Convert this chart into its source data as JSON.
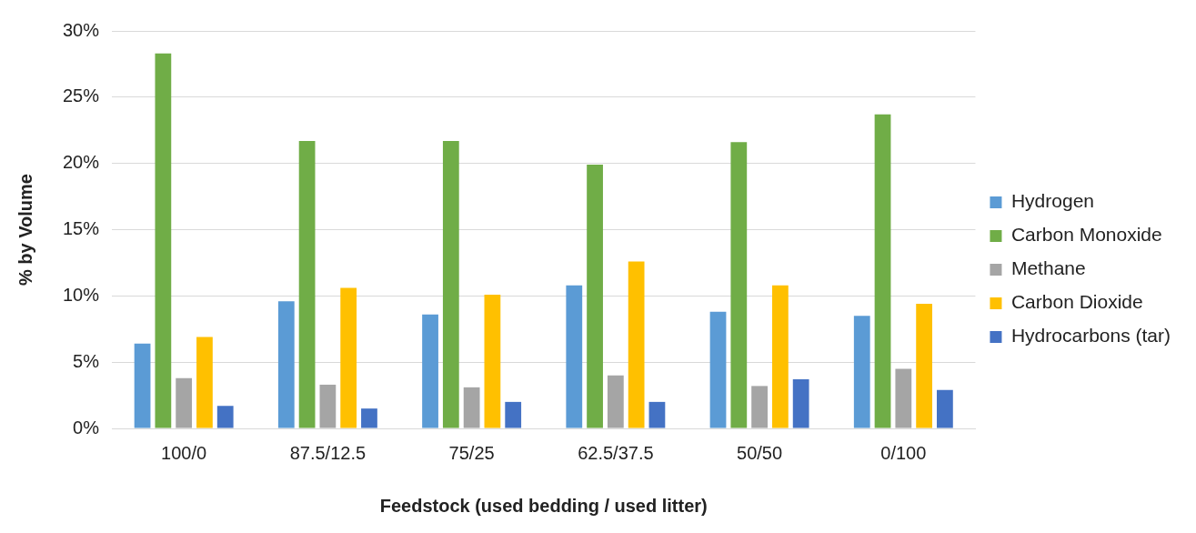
{
  "chart_data": {
    "type": "bar",
    "xlabel": "Feedstock (used bedding / used litter)",
    "ylabel": "% by Volume",
    "categories": [
      "100/0",
      "87.5/12.5",
      "75/25",
      "62.5/37.5",
      "50/50",
      "0/100"
    ],
    "series": [
      {
        "name": "Hydrogen",
        "color": "#5b9bd5",
        "values": [
          6.4,
          9.6,
          8.6,
          10.8,
          8.8,
          8.5
        ]
      },
      {
        "name": "Carbon Monoxide",
        "color": "#70ad47",
        "values": [
          28.3,
          21.7,
          21.7,
          19.9,
          21.6,
          23.7
        ]
      },
      {
        "name": "Methane",
        "color": "#a5a5a5",
        "values": [
          3.8,
          3.3,
          3.1,
          4.0,
          3.2,
          4.5
        ]
      },
      {
        "name": "Carbon Dioxide",
        "color": "#ffc000",
        "values": [
          6.9,
          10.6,
          10.1,
          12.6,
          10.8,
          9.4
        ]
      },
      {
        "name": "Hydrocarbons (tar)",
        "color": "#4472c4",
        "values": [
          1.7,
          1.5,
          2.0,
          2.0,
          3.7,
          2.9
        ]
      }
    ],
    "ylim": [
      0,
      30
    ],
    "yticks": [
      {
        "value": 0,
        "label": "0%"
      },
      {
        "value": 5,
        "label": "5%"
      },
      {
        "value": 10,
        "label": "10%"
      },
      {
        "value": 15,
        "label": "15%"
      },
      {
        "value": 20,
        "label": "20%"
      },
      {
        "value": 25,
        "label": "25%"
      },
      {
        "value": 30,
        "label": "30%"
      }
    ],
    "grid": "y",
    "legend": "right"
  }
}
